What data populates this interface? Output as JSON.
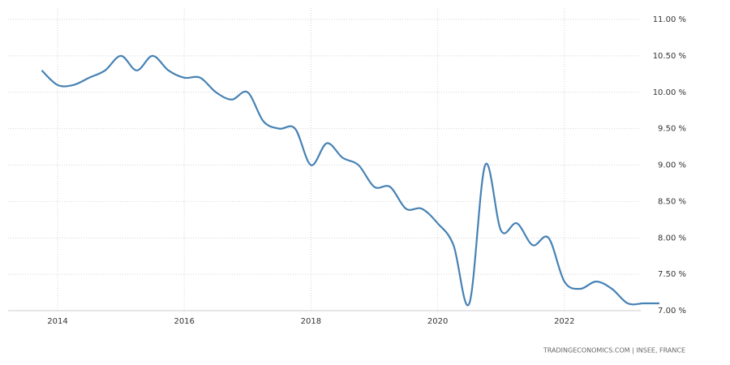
{
  "chart_data": {
    "type": "line",
    "source": "TRADINGECONOMICS.COM | INSEE, FRANCE",
    "x": [
      2013.75,
      2014,
      2014.25,
      2014.5,
      2014.75,
      2015,
      2015.25,
      2015.5,
      2015.75,
      2016,
      2016.25,
      2016.5,
      2016.75,
      2017,
      2017.25,
      2017.5,
      2017.75,
      2018,
      2018.25,
      2018.5,
      2018.75,
      2019,
      2019.25,
      2019.5,
      2019.75,
      2020,
      2020.25,
      2020.5,
      2020.75,
      2021,
      2021.25,
      2021.5,
      2021.75,
      2022,
      2022.25,
      2022.5,
      2022.75,
      2023,
      2023.25,
      2023.5
    ],
    "series": [
      {
        "color": "#4682b4",
        "values": [
          10.3,
          10.1,
          10.1,
          10.2,
          10.3,
          10.5,
          10.3,
          10.5,
          10.3,
          10.2,
          10.2,
          10.0,
          9.9,
          10.0,
          9.6,
          9.5,
          9.5,
          9.0,
          9.3,
          9.1,
          9.0,
          8.7,
          8.7,
          8.4,
          8.4,
          8.2,
          7.9,
          7.1,
          9.0,
          8.1,
          8.2,
          7.9,
          8.0,
          7.4,
          7.3,
          7.4,
          7.3,
          7.1,
          7.1,
          7.1
        ]
      }
    ],
    "xlim": [
      2013.2,
      2024
    ],
    "xticks": [
      2014,
      2016,
      2018,
      2020,
      2022
    ],
    "ylim": [
      7,
      11
    ],
    "yticks": [
      {
        "value": 7,
        "label": "7.00 %"
      },
      {
        "value": 7.5,
        "label": "7.50 %"
      },
      {
        "value": 8,
        "label": "8.00 %"
      },
      {
        "value": 8.5,
        "label": "8.50 %"
      },
      {
        "value": 9,
        "label": "9.00 %"
      },
      {
        "value": 9.5,
        "label": "9.50 %"
      },
      {
        "value": 10,
        "label": "10.00 %"
      },
      {
        "value": 10.5,
        "label": "10.50 %"
      },
      {
        "value": 11,
        "label": "11.00 %"
      }
    ],
    "grid": true
  }
}
